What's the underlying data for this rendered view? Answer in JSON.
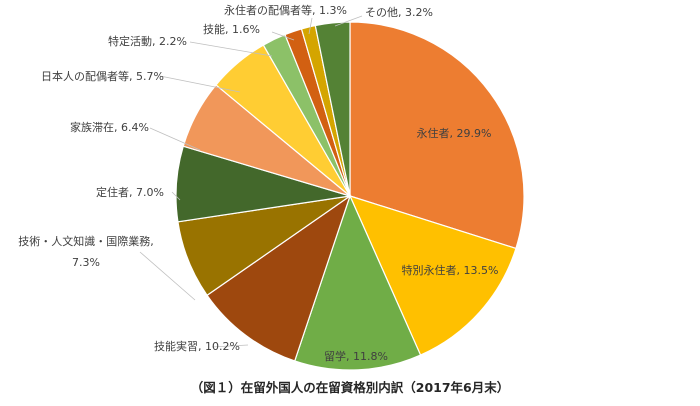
{
  "chart_data": {
    "type": "pie",
    "title": "（図１）在留外国人の在留資格別内訳（2017年6月末）",
    "slices": [
      {
        "label": "永住者",
        "value": 29.9,
        "value_text": "29.9%",
        "color": "#ED7D31"
      },
      {
        "label": "特別永住者",
        "value": 13.5,
        "value_text": "13.5%",
        "color": "#FFC000"
      },
      {
        "label": "留学",
        "value": 11.8,
        "value_text": "11.8%",
        "color": "#70AD47"
      },
      {
        "label": "技能実習",
        "value": 10.2,
        "value_text": "10.2%",
        "color": "#9E480E"
      },
      {
        "label": "技術・人文知識・国際業務",
        "value": 7.3,
        "value_text": "7.3%",
        "color": "#997300"
      },
      {
        "label": "定住者",
        "value": 7.0,
        "value_text": "7.0%",
        "color": "#43682B"
      },
      {
        "label": "家族滞在",
        "value": 6.4,
        "value_text": "6.4%",
        "color": "#F1975A"
      },
      {
        "label": "日本人の配偶者等",
        "value": 5.7,
        "value_text": "5.7%",
        "color": "#FFCD33"
      },
      {
        "label": "特定活動",
        "value": 2.2,
        "value_text": "2.2%",
        "color": "#8CC168"
      },
      {
        "label": "技能",
        "value": 1.6,
        "value_text": "1.6%",
        "color": "#D26012"
      },
      {
        "label": "永住者の配偶者等",
        "value": 1.3,
        "value_text": "1.3%",
        "color": "#D4A500"
      },
      {
        "label": "その他",
        "value": 3.2,
        "value_text": "3.2%",
        "color": "#548235"
      }
    ]
  }
}
